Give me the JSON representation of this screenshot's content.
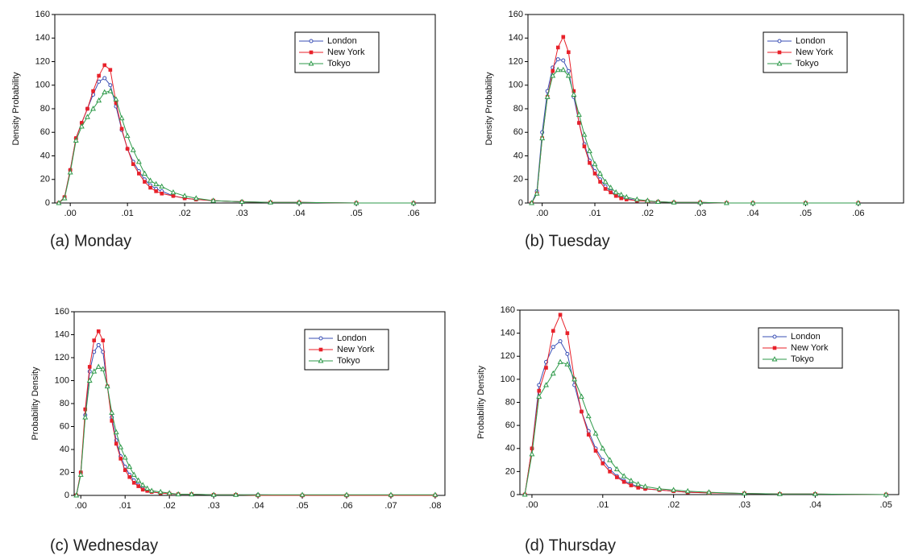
{
  "chart_data": [
    {
      "type": "line",
      "caption": "(a)  Monday",
      "ylabel": "Density Probability",
      "legend": "upper right",
      "x": [
        -0.002,
        -0.001,
        0,
        0.001,
        0.002,
        0.003,
        0.004,
        0.005,
        0.006,
        0.007,
        0.008,
        0.009,
        0.01,
        0.011,
        0.012,
        0.013,
        0.014,
        0.015,
        0.016,
        0.018,
        0.02,
        0.022,
        0.025,
        0.03,
        0.035,
        0.04,
        0.05,
        0.06
      ],
      "series": [
        {
          "name": "London",
          "color": "#3a4fb5",
          "marker": "circle",
          "values": [
            0,
            5,
            28,
            55,
            68,
            80,
            92,
            103,
            106,
            100,
            82,
            62,
            46,
            35,
            27,
            20,
            15,
            12,
            10,
            6,
            4,
            3,
            2,
            1,
            0.5,
            0.5,
            0,
            0
          ]
        },
        {
          "name": "New York",
          "color": "#e8212a",
          "marker": "square",
          "values": [
            0,
            5,
            28,
            55,
            68,
            80,
            95,
            108,
            117,
            113,
            85,
            63,
            46,
            33,
            25,
            18,
            13,
            10,
            8,
            6,
            4,
            3,
            2,
            1,
            0.5,
            0.5,
            0,
            0
          ]
        },
        {
          "name": "Tokyo",
          "color": "#2e9a4a",
          "marker": "triangle",
          "values": [
            0,
            4,
            26,
            53,
            65,
            73,
            80,
            87,
            94,
            95,
            88,
            72,
            57,
            45,
            35,
            25,
            19,
            16,
            14,
            9,
            6,
            4,
            2,
            1,
            0.5,
            0.5,
            0,
            0
          ]
        }
      ],
      "xlim": [
        -0.0027,
        0.0638
      ],
      "ylim": [
        0,
        160
      ],
      "xticks": [
        {
          "value": 0,
          "label": ".00"
        },
        {
          "value": 0.01,
          "label": ".01"
        },
        {
          "value": 0.02,
          "label": ".02"
        },
        {
          "value": 0.03,
          "label": ".03"
        },
        {
          "value": 0.04,
          "label": ".04"
        },
        {
          "value": 0.05,
          "label": ".05"
        },
        {
          "value": 0.06,
          "label": ".06"
        }
      ],
      "yticks": [
        0,
        20,
        40,
        60,
        80,
        100,
        120,
        140,
        160
      ]
    },
    {
      "type": "line",
      "caption": "(b) Tuesday",
      "ylabel": "Density Probability",
      "legend": "upper right",
      "x": [
        -0.002,
        -0.001,
        0,
        0.001,
        0.002,
        0.003,
        0.004,
        0.005,
        0.006,
        0.007,
        0.008,
        0.009,
        0.01,
        0.011,
        0.012,
        0.013,
        0.014,
        0.015,
        0.016,
        0.018,
        0.02,
        0.022,
        0.025,
        0.03,
        0.035,
        0.04,
        0.05,
        0.06
      ],
      "series": [
        {
          "name": "London",
          "color": "#3a4fb5",
          "marker": "circle",
          "values": [
            0,
            10,
            60,
            95,
            115,
            122,
            121,
            112,
            90,
            68,
            50,
            36,
            27,
            20,
            14,
            10,
            7,
            5,
            4,
            2,
            1.5,
            1,
            0.5,
            0.5,
            0,
            0,
            0,
            0
          ]
        },
        {
          "name": "New York",
          "color": "#e8212a",
          "marker": "square",
          "values": [
            0,
            8,
            55,
            90,
            112,
            132,
            141,
            128,
            95,
            68,
            48,
            34,
            25,
            18,
            12,
            9,
            6,
            4,
            3,
            2,
            1.5,
            1,
            0.5,
            0.5,
            0,
            0,
            0,
            0
          ]
        },
        {
          "name": "Tokyo",
          "color": "#2e9a4a",
          "marker": "triangle",
          "values": [
            0,
            8,
            55,
            90,
            108,
            113,
            113,
            108,
            92,
            75,
            58,
            44,
            33,
            25,
            18,
            13,
            9,
            7,
            5,
            3,
            2,
            1,
            0.5,
            0.5,
            0,
            0,
            0,
            0
          ]
        }
      ],
      "xlim": [
        -0.0027,
        0.0686
      ],
      "ylim": [
        0,
        160
      ],
      "xticks": [
        {
          "value": 0,
          "label": ".00"
        },
        {
          "value": 0.01,
          "label": ".01"
        },
        {
          "value": 0.02,
          "label": ".02"
        },
        {
          "value": 0.03,
          "label": ".03"
        },
        {
          "value": 0.04,
          "label": ".04"
        },
        {
          "value": 0.05,
          "label": ".05"
        },
        {
          "value": 0.06,
          "label": ".06"
        }
      ],
      "yticks": [
        0,
        20,
        40,
        60,
        80,
        100,
        120,
        140,
        160
      ]
    },
    {
      "type": "line",
      "caption": "(c) Wednesday",
      "ylabel": "Probability Density",
      "legend": "upper right",
      "x": [
        -0.001,
        0,
        0.001,
        0.002,
        0.003,
        0.004,
        0.005,
        0.006,
        0.007,
        0.008,
        0.009,
        0.01,
        0.011,
        0.012,
        0.013,
        0.014,
        0.015,
        0.016,
        0.018,
        0.02,
        0.022,
        0.025,
        0.03,
        0.035,
        0.04,
        0.05,
        0.06,
        0.07,
        0.08
      ],
      "series": [
        {
          "name": "London",
          "color": "#3a4fb5",
          "marker": "circle",
          "values": [
            0,
            20,
            70,
            108,
            125,
            131,
            125,
            95,
            68,
            48,
            34,
            25,
            18,
            13,
            9,
            6,
            4,
            3,
            2,
            1.5,
            1,
            1,
            0.5,
            0.5,
            0.5,
            0,
            0,
            0,
            0
          ]
        },
        {
          "name": "New York",
          "color": "#e8212a",
          "marker": "square",
          "values": [
            0,
            20,
            75,
            112,
            135,
            143,
            135,
            95,
            65,
            45,
            32,
            22,
            16,
            11,
            8,
            5,
            4,
            3,
            2,
            1.5,
            1,
            1,
            0.5,
            0.5,
            0,
            0,
            0,
            0,
            0
          ]
        },
        {
          "name": "Tokyo",
          "color": "#2e9a4a",
          "marker": "triangle",
          "values": [
            0,
            18,
            68,
            100,
            108,
            112,
            110,
            95,
            72,
            55,
            42,
            33,
            25,
            18,
            13,
            9,
            6,
            4,
            3,
            2,
            1,
            1,
            0.5,
            0.5,
            0.5,
            0.5,
            0.5,
            0.5,
            0.5
          ]
        }
      ],
      "xlim": [
        -0.0015,
        0.0822
      ],
      "ylim": [
        0,
        160
      ],
      "xticks": [
        {
          "value": 0,
          "label": ".00"
        },
        {
          "value": 0.01,
          "label": ".01"
        },
        {
          "value": 0.02,
          "label": ".02"
        },
        {
          "value": 0.03,
          "label": ".03"
        },
        {
          "value": 0.04,
          "label": ".04"
        },
        {
          "value": 0.05,
          "label": ".05"
        },
        {
          "value": 0.06,
          "label": ".06"
        },
        {
          "value": 0.07,
          "label": ".07"
        },
        {
          "value": 0.08,
          "label": ".08"
        }
      ],
      "yticks": [
        0,
        20,
        40,
        60,
        80,
        100,
        120,
        140,
        160
      ]
    },
    {
      "type": "line",
      "caption": "(d) Thursday",
      "ylabel": "Probability Density",
      "legend": "upper right",
      "x": [
        -0.001,
        0,
        0.001,
        0.002,
        0.003,
        0.004,
        0.005,
        0.006,
        0.007,
        0.008,
        0.009,
        0.01,
        0.011,
        0.012,
        0.013,
        0.014,
        0.015,
        0.016,
        0.018,
        0.02,
        0.022,
        0.025,
        0.03,
        0.035,
        0.04,
        0.05
      ],
      "series": [
        {
          "name": "London",
          "color": "#3a4fb5",
          "marker": "circle",
          "values": [
            0,
            40,
            95,
            115,
            128,
            133,
            122,
            95,
            72,
            55,
            40,
            30,
            22,
            16,
            12,
            9,
            7,
            5,
            4,
            3,
            2,
            1.5,
            1,
            0.5,
            0.5,
            0
          ]
        },
        {
          "name": "New York",
          "color": "#e8212a",
          "marker": "square",
          "values": [
            0,
            40,
            90,
            110,
            142,
            156,
            140,
            100,
            72,
            52,
            38,
            27,
            20,
            15,
            11,
            8,
            6,
            5,
            4,
            3,
            2,
            1.5,
            1,
            0.5,
            0.5,
            0
          ]
        },
        {
          "name": "Tokyo",
          "color": "#2e9a4a",
          "marker": "triangle",
          "values": [
            0,
            35,
            85,
            95,
            105,
            115,
            113,
            100,
            85,
            68,
            53,
            40,
            30,
            22,
            16,
            12,
            9,
            7,
            5,
            4,
            3,
            2,
            1,
            0.5,
            0.5,
            0
          ]
        }
      ],
      "xlim": [
        -0.0017,
        0.0518
      ],
      "ylim": [
        0,
        160
      ],
      "xticks": [
        {
          "value": 0,
          "label": ".00"
        },
        {
          "value": 0.01,
          "label": ".01"
        },
        {
          "value": 0.02,
          "label": ".02"
        },
        {
          "value": 0.03,
          "label": ".03"
        },
        {
          "value": 0.04,
          "label": ".04"
        },
        {
          "value": 0.05,
          "label": ".05"
        }
      ],
      "yticks": [
        0,
        20,
        40,
        60,
        80,
        100,
        120,
        140,
        160
      ]
    }
  ]
}
